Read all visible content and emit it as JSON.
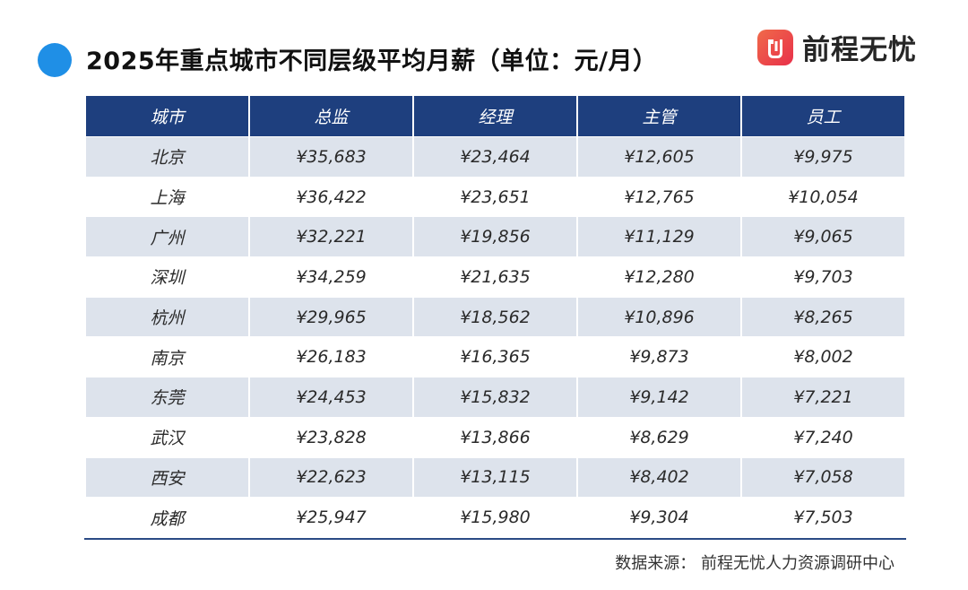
{
  "title": "2025年重点城市不同层级平均月薪（单位：元/月）",
  "logo": {
    "text": "前程无忧",
    "icon": "51job-logo-icon",
    "color": "#e8304a"
  },
  "source": "数据来源：  前程无忧人力资源调研中心",
  "colors": {
    "header": "#1e3f7e",
    "stripe": "#dde3ec",
    "accent_dot": "#1f8fe6"
  },
  "chart_data": {
    "type": "table",
    "columns": [
      "城市",
      "总监",
      "经理",
      "主管",
      "员工"
    ],
    "rows": [
      [
        "北京",
        "¥35,683",
        "¥23,464",
        "¥12,605",
        "¥9,975"
      ],
      [
        "上海",
        "¥36,422",
        "¥23,651",
        "¥12,765",
        "¥10,054"
      ],
      [
        "广州",
        "¥32,221",
        "¥19,856",
        "¥11,129",
        "¥9,065"
      ],
      [
        "深圳",
        "¥34,259",
        "¥21,635",
        "¥12,280",
        "¥9,703"
      ],
      [
        "杭州",
        "¥29,965",
        "¥18,562",
        "¥10,896",
        "¥8,265"
      ],
      [
        "南京",
        "¥26,183",
        "¥16,365",
        "¥9,873",
        "¥8,002"
      ],
      [
        "东莞",
        "¥24,453",
        "¥15,832",
        "¥9,142",
        "¥7,221"
      ],
      [
        "武汉",
        "¥23,828",
        "¥13,866",
        "¥8,629",
        "¥7,240"
      ],
      [
        "西安",
        "¥22,623",
        "¥13,115",
        "¥8,402",
        "¥7,058"
      ],
      [
        "成都",
        "¥25,947",
        "¥15,980",
        "¥9,304",
        "¥7,503"
      ]
    ]
  }
}
